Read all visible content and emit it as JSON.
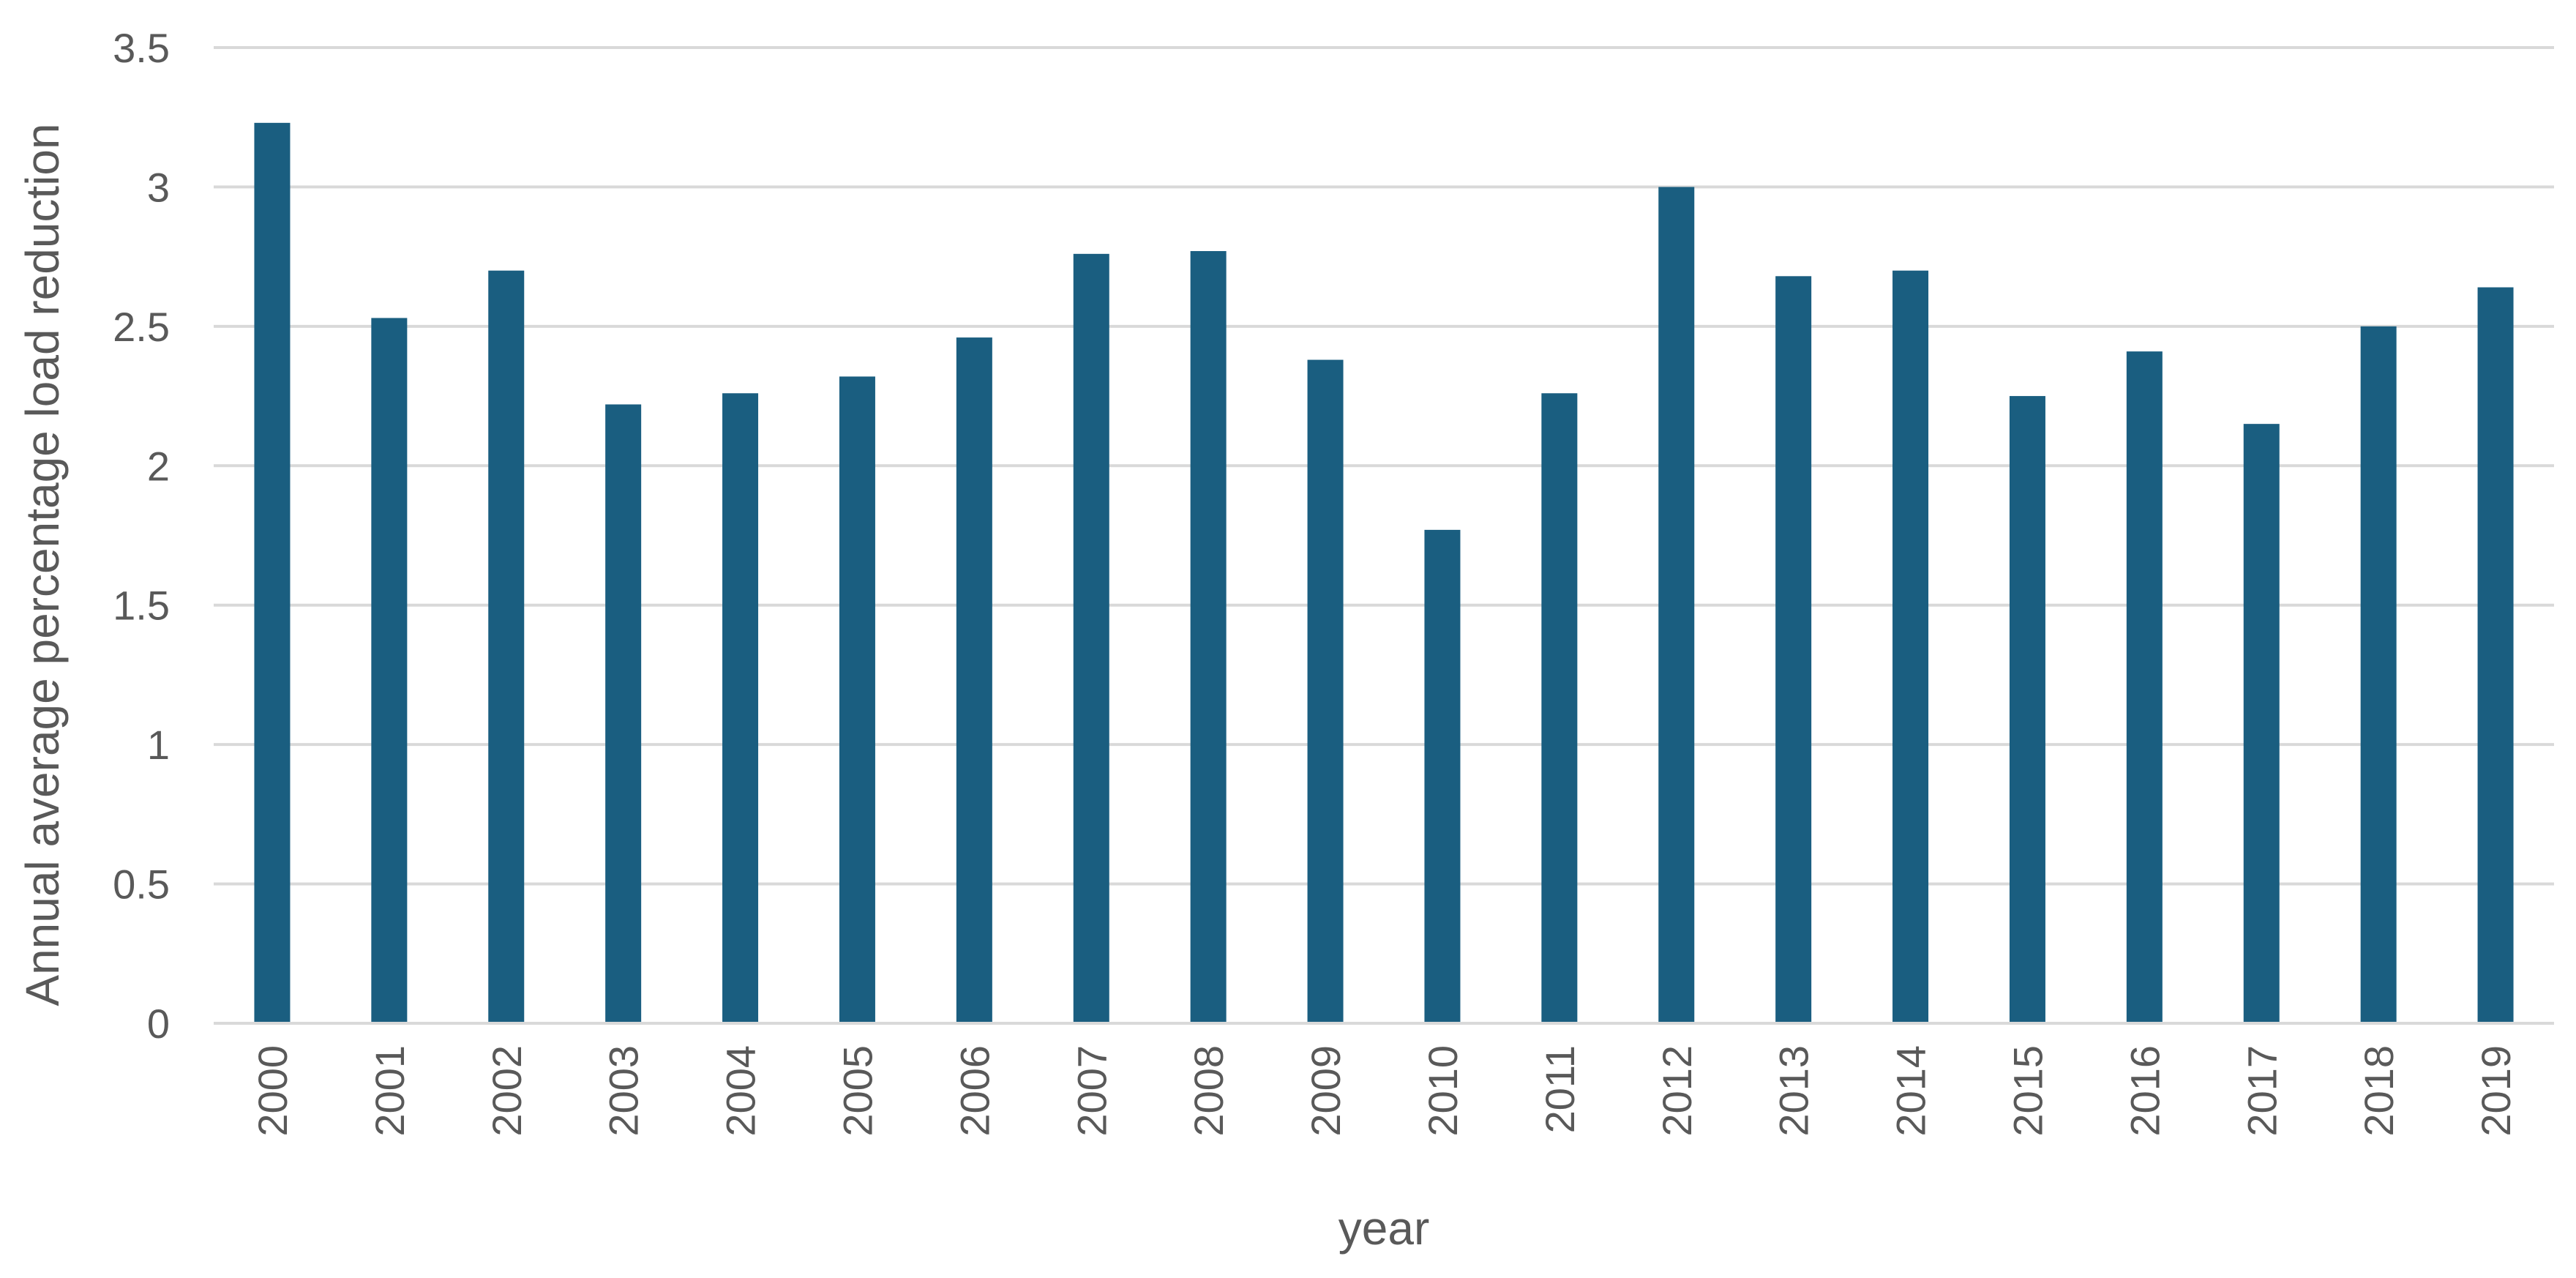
{
  "chart_data": {
    "type": "bar",
    "title": "",
    "xlabel": "year",
    "ylabel": "Annual average percentage load reduction",
    "categories": [
      "2000",
      "2001",
      "2002",
      "2003",
      "2004",
      "2005",
      "2006",
      "2007",
      "2008",
      "2009",
      "2010",
      "2011",
      "2012",
      "2013",
      "2014",
      "2015",
      "2016",
      "2017",
      "2018",
      "2019"
    ],
    "series": [
      {
        "values": [
          3.23,
          2.53,
          2.7,
          2.22,
          2.26,
          2.32,
          2.46,
          2.76,
          2.77,
          2.38,
          1.77,
          2.26,
          3.0,
          2.68,
          2.7,
          2.25,
          2.41,
          2.15,
          2.5,
          2.64
        ],
        "color": "#1a5e80"
      }
    ],
    "ylim": [
      0,
      3.5
    ],
    "yticks": [
      "0",
      "0.5",
      "1",
      "1.5",
      "2",
      "2.5",
      "3",
      "3.5"
    ],
    "grid": "horizontal",
    "legend": "none"
  }
}
